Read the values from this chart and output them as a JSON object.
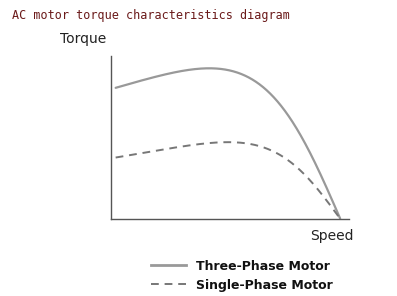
{
  "title": "AC motor torque characteristics diagram",
  "title_color": "#6B1A1A",
  "ylabel": "Torque",
  "xlabel": "Speed",
  "background_color": "#ffffff",
  "three_phase_color": "#999999",
  "single_phase_color": "#777777",
  "legend_three_phase": "Three-Phase Motor",
  "legend_single_phase": "Single-Phase Motor",
  "fig_width": 3.97,
  "fig_height": 2.96,
  "dpi": 100,
  "title_fontsize": 8.5,
  "axis_label_fontsize": 10,
  "legend_fontsize": 9
}
